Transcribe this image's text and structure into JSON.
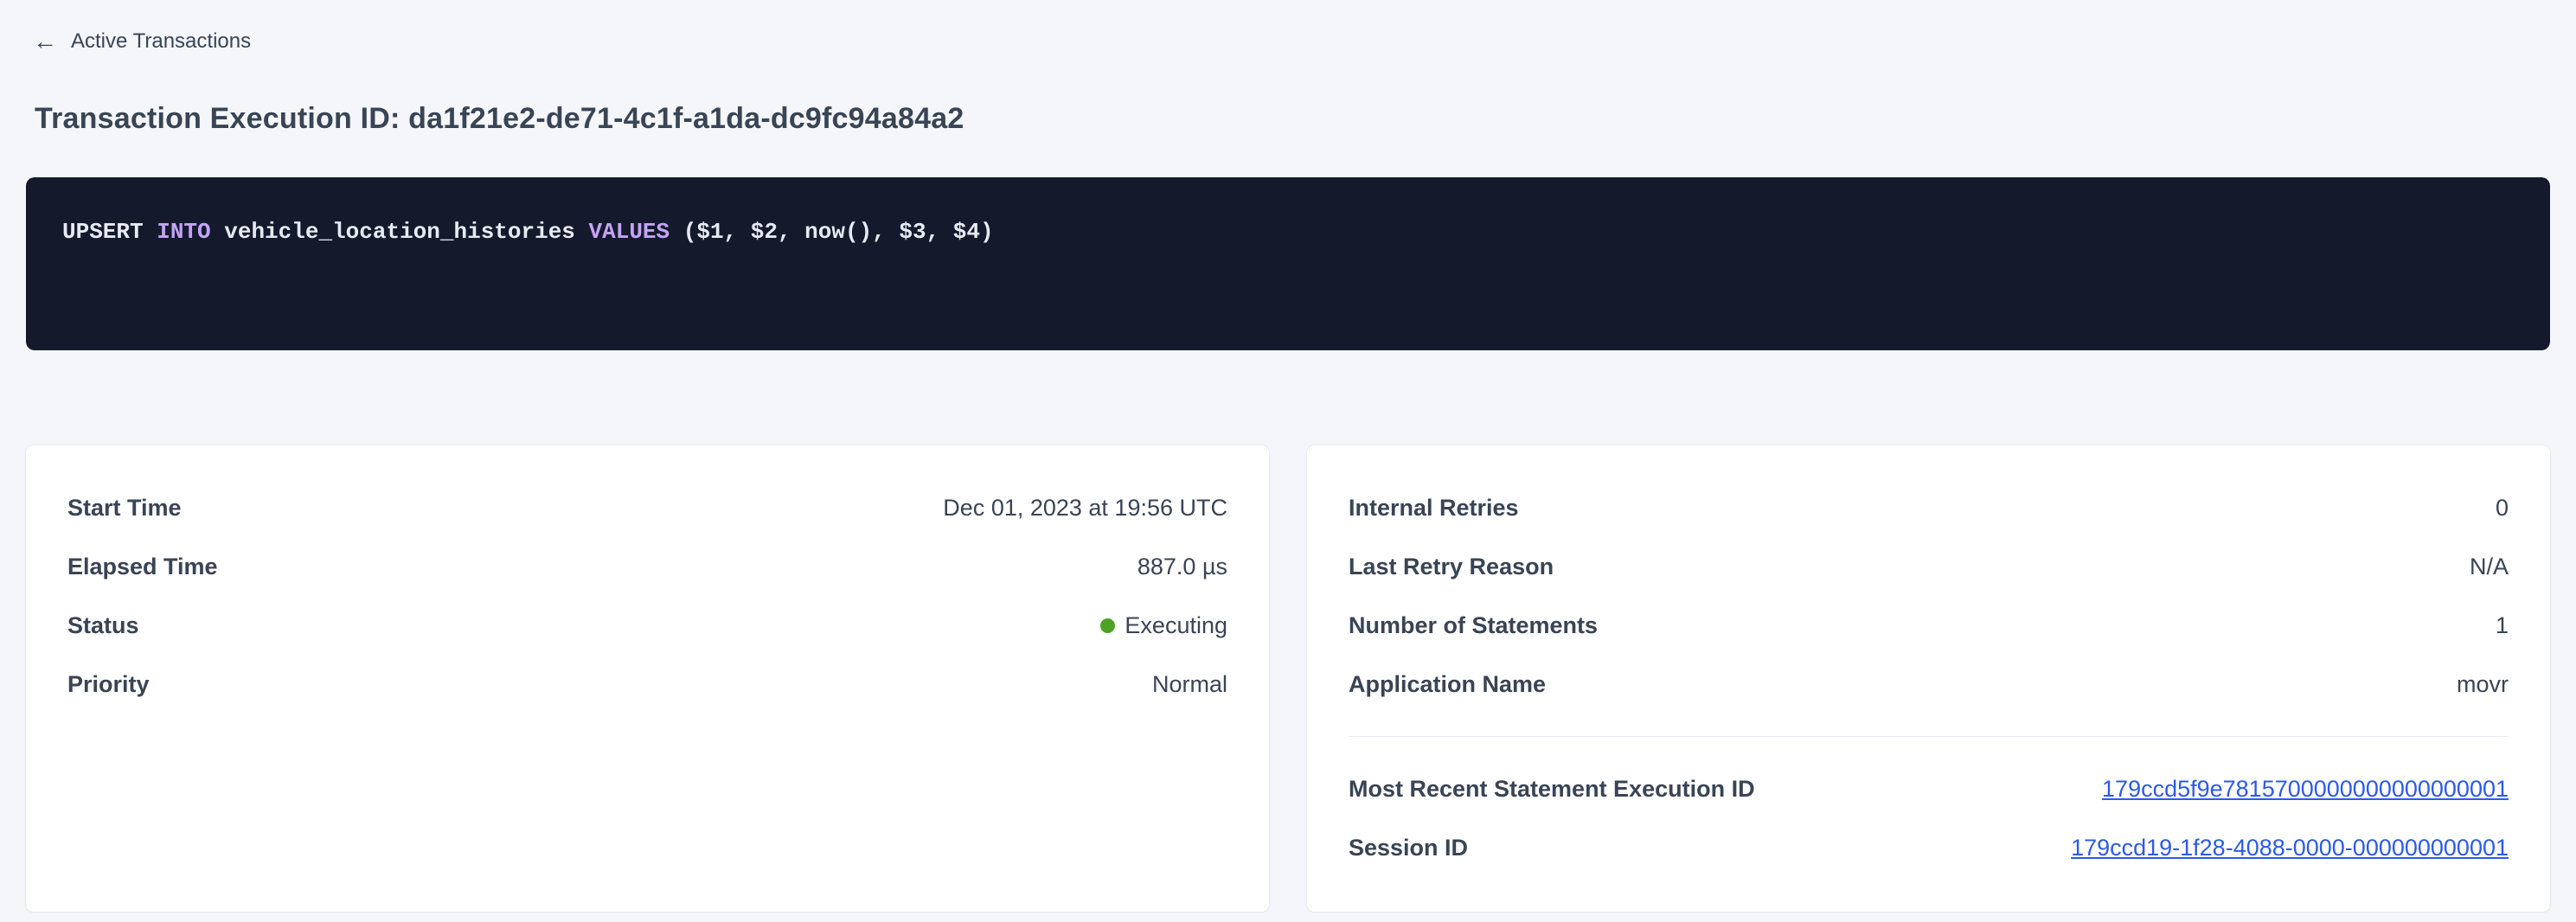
{
  "colors": {
    "page_background": "#f4f6fa",
    "card_background": "#ffffff",
    "code_background": "#141a2c",
    "code_text": "#e7eaf2",
    "code_keyword": "#c4a3f5",
    "text_dark": "#394455",
    "link_blue": "#2c5ae9",
    "status_green": "#4ca323",
    "divider": "#e8edf3"
  },
  "nav": {
    "back_icon": "arrow-left",
    "back_label": "Active Transactions"
  },
  "page": {
    "title": "Transaction Execution ID: da1f21e2-de71-4c1f-a1da-dc9fc94a84a2"
  },
  "sql": {
    "statement": "UPSERT INTO vehicle_location_histories VALUES ($1, $2, now(), $3, $4)",
    "tokens": [
      {
        "text": "UPSERT ",
        "type": "plain"
      },
      {
        "text": "INTO",
        "type": "keyword"
      },
      {
        "text": " vehicle_location_histories ",
        "type": "plain"
      },
      {
        "text": "VALUES",
        "type": "keyword"
      },
      {
        "text": " ($1, $2, now(), $3, $4)",
        "type": "plain"
      }
    ]
  },
  "summary_card": {
    "rows": [
      {
        "label": "Start Time",
        "value": "Dec 01, 2023 at 19:56 UTC"
      },
      {
        "label": "Elapsed Time",
        "value": "887.0 µs"
      },
      {
        "label": "Status",
        "value": "Executing",
        "status_color": "#4ca323"
      },
      {
        "label": "Priority",
        "value": "Normal"
      }
    ]
  },
  "details_card": {
    "rows": [
      {
        "label": "Internal Retries",
        "value": "0"
      },
      {
        "label": "Last Retry Reason",
        "value": "N/A"
      },
      {
        "label": "Number of Statements",
        "value": "1"
      },
      {
        "label": "Application Name",
        "value": "movr"
      }
    ],
    "link_rows": [
      {
        "label": "Most Recent Statement Execution ID",
        "value": "179ccd5f9e7815700000000000000001"
      },
      {
        "label": "Session ID",
        "value": "179ccd19-1f28-4088-0000-000000000001"
      }
    ]
  }
}
